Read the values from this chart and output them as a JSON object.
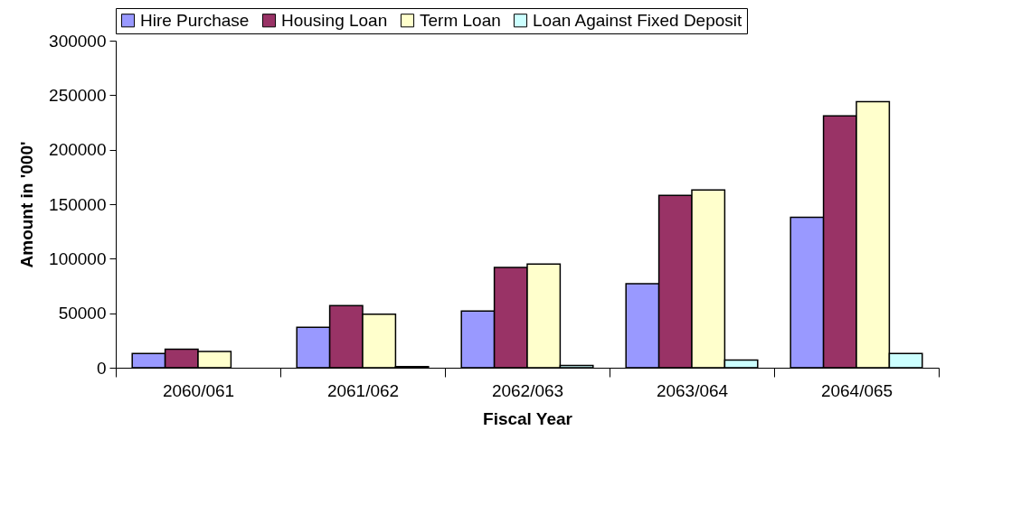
{
  "chart_data": {
    "type": "bar",
    "xlabel": "Fiscal Year",
    "ylabel": "Amount in '000'",
    "categories": [
      "2060/061",
      "2061/062",
      "2062/063",
      "2063/064",
      "2064/065"
    ],
    "series": [
      {
        "name": "Hire Purchase",
        "color": "#9999ff",
        "values": [
          13000,
          37000,
          52000,
          77000,
          138000
        ]
      },
      {
        "name": "Housing Loan",
        "color": "#993366",
        "values": [
          17000,
          57000,
          92000,
          158000,
          231000
        ]
      },
      {
        "name": "Term Loan",
        "color": "#ffffcc",
        "values": [
          15000,
          49000,
          95000,
          163000,
          244000
        ]
      },
      {
        "name": "Loan Against Fixed Deposit",
        "color": "#ccffff",
        "values": [
          null,
          1000,
          2000,
          7000,
          13000
        ]
      }
    ],
    "ylim": [
      0,
      300000
    ],
    "yticks": [
      0,
      50000,
      100000,
      150000,
      200000,
      250000,
      300000
    ],
    "grid": false,
    "legend": "top"
  }
}
